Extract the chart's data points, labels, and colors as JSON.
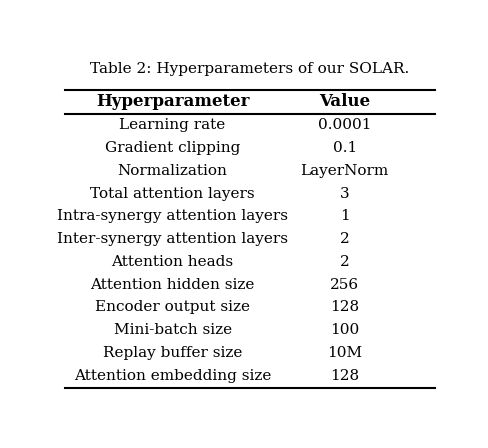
{
  "title": "Table 2: Hyperparameters of our SOLAR.",
  "col_headers": [
    "Hyperparameter",
    "Value"
  ],
  "rows": [
    [
      "Learning rate",
      "0.0001"
    ],
    [
      "Gradient clipping",
      "0.1"
    ],
    [
      "Normalization",
      "LayerNorm"
    ],
    [
      "Total attention layers",
      "3"
    ],
    [
      "Intra-synergy attention layers",
      "1"
    ],
    [
      "Inter-synergy attention layers",
      "2"
    ],
    [
      "Attention heads",
      "2"
    ],
    [
      "Attention hidden size",
      "256"
    ],
    [
      "Encoder output size",
      "128"
    ],
    [
      "Mini-batch size",
      "100"
    ],
    [
      "Replay buffer size",
      "10M"
    ],
    [
      "Attention embedding size",
      "128"
    ]
  ],
  "background_color": "#ffffff",
  "text_color": "#000000",
  "title_fontsize": 11,
  "header_fontsize": 12,
  "row_fontsize": 11,
  "fig_width": 4.88,
  "fig_height": 4.48
}
